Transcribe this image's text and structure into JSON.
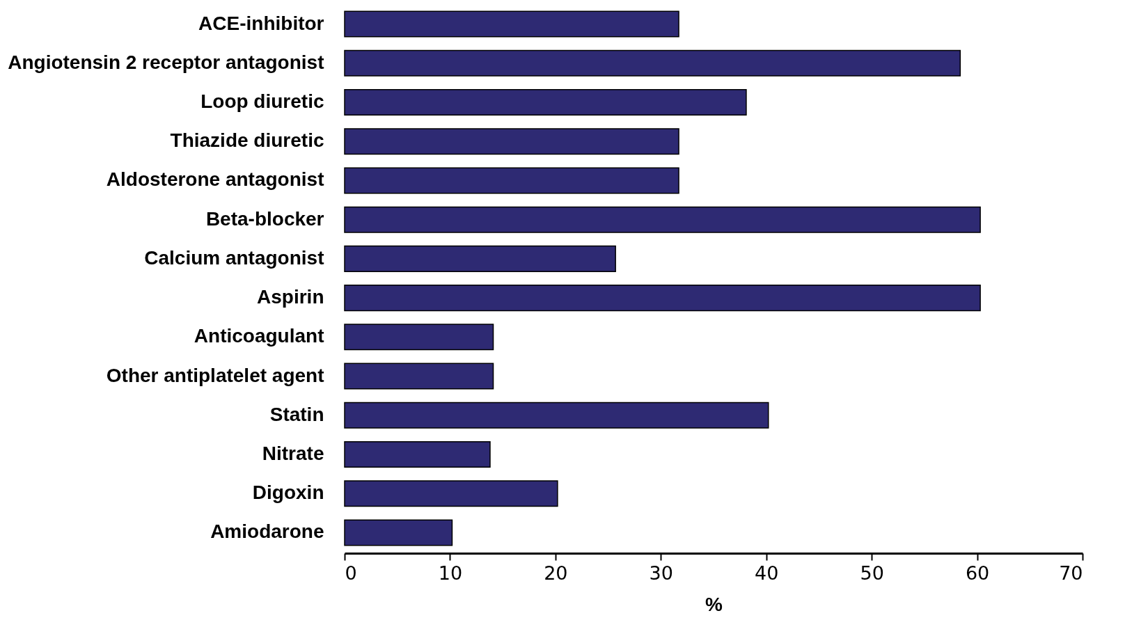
{
  "chart_data": {
    "type": "bar",
    "orientation": "horizontal",
    "xlabel": "%",
    "categories": [
      "ACE-inhibitor",
      "Angiotensin 2 receptor antagonist",
      "Loop diuretic",
      "Thiazide diuretic",
      "Aldosterone antagonist",
      "Beta-blocker",
      "Calcium antagonist",
      "Aspirin",
      "Anticoagulant",
      "Other antiplatelet agent",
      "Statin",
      "Nitrate",
      "Digoxin",
      "Amiodarone"
    ],
    "values": [
      31.7,
      58.4,
      38.1,
      31.7,
      31.7,
      60.3,
      25.7,
      60.3,
      14.1,
      14.1,
      40.2,
      13.8,
      20.2,
      10.2
    ],
    "color": "#2e2a73",
    "xlim": [
      0,
      70
    ],
    "xticks": [
      0,
      10,
      20,
      30,
      40,
      50,
      60,
      70
    ],
    "grid": false
  }
}
